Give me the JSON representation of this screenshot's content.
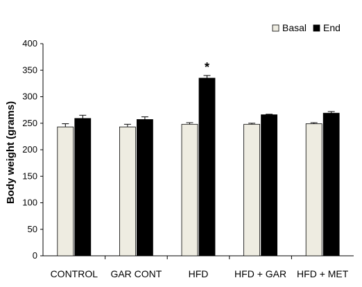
{
  "chart_data": {
    "type": "bar",
    "ylabel": "Body weight (grams)",
    "xlabel": "",
    "ylim": [
      0,
      400
    ],
    "yticks": [
      0,
      50,
      100,
      150,
      200,
      250,
      300,
      350,
      400
    ],
    "categories": [
      "CONTROL",
      "GAR CONT",
      "HFD",
      "HFD + GAR",
      "HFD + MET"
    ],
    "series": [
      {
        "name": "Basal",
        "color": "#EEECE1",
        "values": [
          243,
          243,
          248,
          248,
          249
        ],
        "errors": [
          6,
          5,
          3,
          2,
          2
        ]
      },
      {
        "name": "End",
        "color": "#000000",
        "values": [
          259,
          257,
          335,
          266,
          269
        ],
        "errors": [
          6,
          5,
          5,
          1,
          3
        ]
      }
    ],
    "annotations": [
      {
        "category": "HFD",
        "series": "End",
        "text": "*"
      }
    ],
    "legend_position": "top-right",
    "grid": false
  }
}
